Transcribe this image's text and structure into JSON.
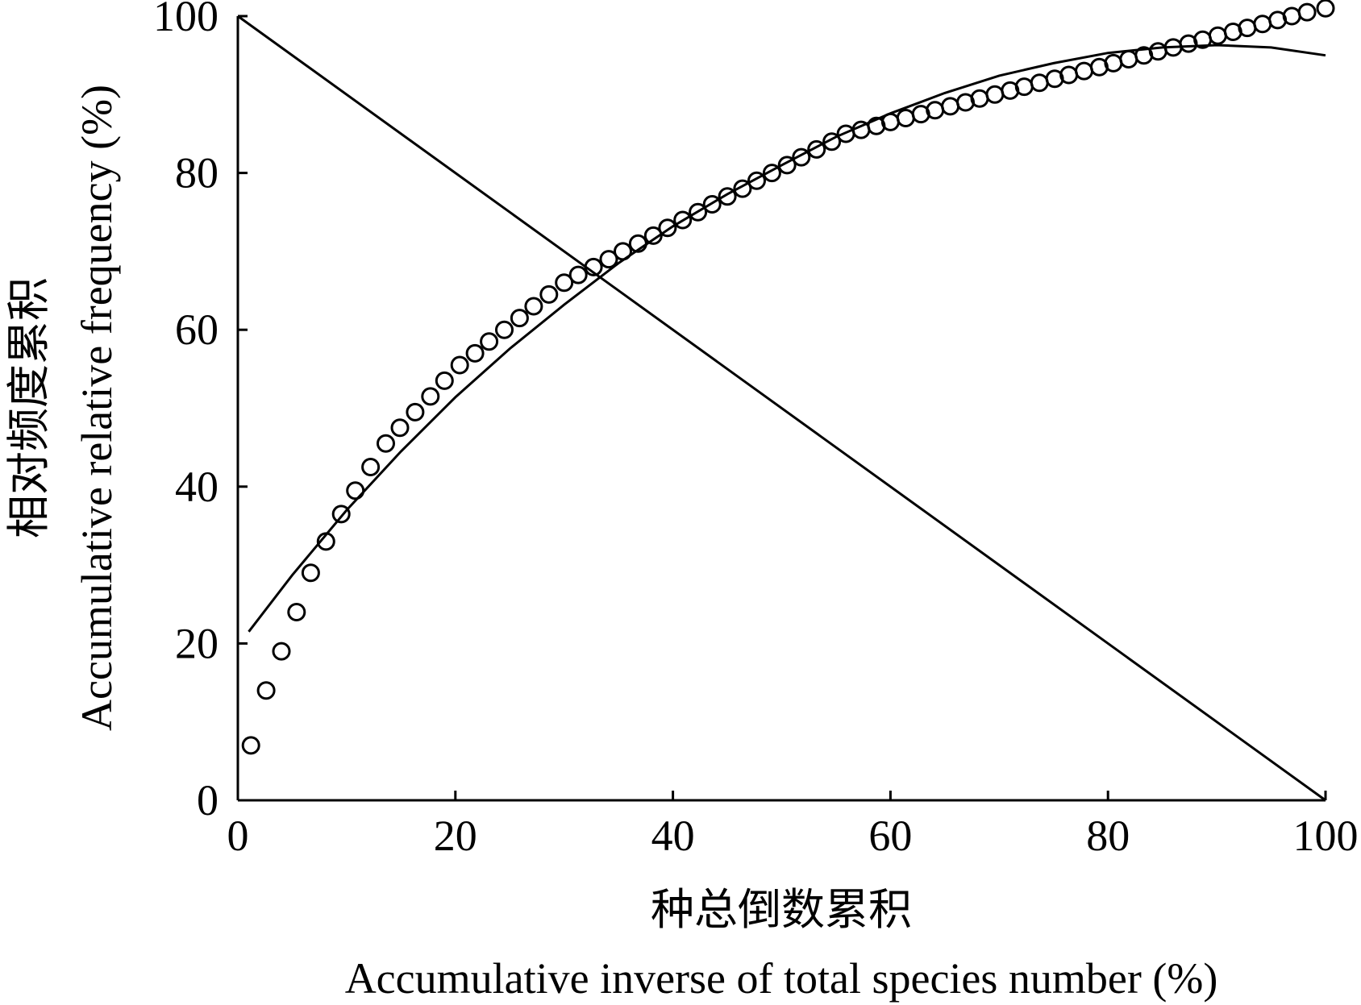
{
  "chart_data": {
    "type": "scatter",
    "xlabel_cn": "种总倒数累积",
    "xlabel": "Accumulative inverse of total species number (%)",
    "ylabel_cn": "相对频度累积",
    "ylabel": "Accumulative relative frequency (%)",
    "xlim": [
      0,
      100
    ],
    "ylim": [
      0,
      100
    ],
    "x_ticks": [
      "0",
      "20",
      "40",
      "60",
      "80",
      "100"
    ],
    "y_ticks": [
      "0",
      "20",
      "40",
      "60",
      "80",
      "100"
    ],
    "grid": false,
    "legend": "none",
    "series": [
      {
        "type": "scatter",
        "marker": "open-circle",
        "x": [
          1.2,
          2.6,
          4.0,
          5.4,
          6.7,
          8.1,
          9.5,
          10.8,
          12.2,
          13.6,
          14.9,
          16.3,
          17.7,
          19.0,
          20.4,
          21.8,
          23.1,
          24.5,
          25.9,
          27.2,
          28.6,
          30.0,
          31.3,
          32.7,
          34.1,
          35.4,
          36.8,
          38.2,
          39.5,
          40.9,
          42.3,
          43.6,
          45.0,
          46.4,
          47.7,
          49.1,
          50.5,
          51.8,
          53.2,
          54.6,
          55.9,
          57.3,
          58.7,
          60.0,
          61.4,
          62.8,
          64.1,
          65.5,
          66.9,
          68.2,
          69.6,
          71.0,
          72.3,
          73.7,
          75.1,
          76.4,
          77.8,
          79.2,
          80.5,
          81.9,
          83.3,
          84.6,
          86.0,
          87.4,
          88.7,
          90.1,
          91.5,
          92.8,
          94.2,
          95.6,
          96.9,
          98.3,
          100.0
        ],
        "y": [
          7.0,
          14.0,
          19.0,
          24.0,
          29.0,
          33.0,
          36.5,
          39.5,
          42.5,
          45.5,
          47.5,
          49.5,
          51.5,
          53.5,
          55.5,
          57.0,
          58.5,
          60.0,
          61.5,
          63.0,
          64.5,
          66.0,
          67.0,
          68.0,
          69.0,
          70.0,
          71.0,
          72.0,
          73.0,
          74.0,
          75.0,
          76.0,
          77.0,
          78.0,
          79.0,
          80.0,
          81.0,
          82.0,
          83.0,
          84.0,
          85.0,
          85.5,
          86.0,
          86.5,
          87.0,
          87.5,
          88.0,
          88.5,
          89.0,
          89.5,
          90.0,
          90.5,
          91.0,
          91.5,
          92.0,
          92.5,
          93.0,
          93.5,
          94.0,
          94.5,
          95.0,
          95.5,
          96.0,
          96.5,
          97.0,
          97.5,
          98.0,
          98.5,
          99.0,
          99.5,
          100.0,
          100.5,
          101.0
        ]
      },
      {
        "type": "line",
        "style": "fitted-curve",
        "x": [
          1,
          5,
          10,
          15,
          20,
          25,
          30,
          35,
          40,
          45,
          50,
          55,
          60,
          65,
          70,
          75,
          80,
          85,
          90,
          95,
          100
        ],
        "y": [
          21.5,
          28.7,
          37.0,
          44.5,
          51.4,
          57.6,
          63.2,
          68.5,
          73.2,
          77.3,
          81.0,
          84.6,
          87.6,
          90.2,
          92.4,
          94.0,
          95.3,
          96.0,
          96.3,
          96.0,
          95.0
        ]
      },
      {
        "type": "line",
        "style": "straight",
        "x": [
          0,
          100
        ],
        "y": [
          100,
          0
        ]
      }
    ]
  }
}
